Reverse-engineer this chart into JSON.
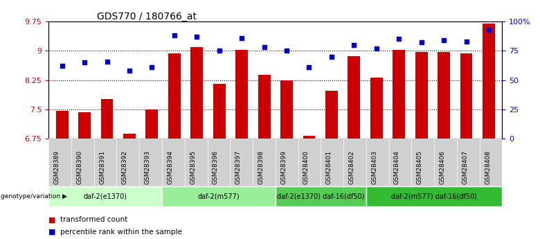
{
  "title": "GDS770 / 180766_at",
  "samples": [
    "GSM28389",
    "GSM28390",
    "GSM28391",
    "GSM28392",
    "GSM28393",
    "GSM28394",
    "GSM28395",
    "GSM28396",
    "GSM28397",
    "GSM28398",
    "GSM28399",
    "GSM28400",
    "GSM28401",
    "GSM28402",
    "GSM28403",
    "GSM28404",
    "GSM28405",
    "GSM28406",
    "GSM28407",
    "GSM28408"
  ],
  "bar_values": [
    7.47,
    7.43,
    7.76,
    6.88,
    7.5,
    8.93,
    9.1,
    8.15,
    9.02,
    8.38,
    8.25,
    6.82,
    7.97,
    8.86,
    8.32,
    9.02,
    8.97,
    8.97,
    8.93,
    9.7
  ],
  "dot_values": [
    62,
    65,
    66,
    58,
    61,
    88,
    87,
    75,
    86,
    78,
    75,
    61,
    70,
    80,
    77,
    85,
    82,
    84,
    83,
    93
  ],
  "ylim_left": [
    6.75,
    9.75
  ],
  "ylim_right": [
    0,
    100
  ],
  "yticks_left": [
    6.75,
    7.5,
    8.25,
    9.0,
    9.75
  ],
  "yticks_right": [
    0,
    25,
    50,
    75,
    100
  ],
  "ytick_labels_left": [
    "6.75",
    "7.5",
    "8.25",
    "9",
    "9.75"
  ],
  "ytick_labels_right": [
    "0",
    "25",
    "50",
    "75",
    "100%"
  ],
  "bar_color": "#cc0000",
  "dot_color": "#0000cc",
  "groups": [
    {
      "label": "daf-2(e1370)",
      "start": 0,
      "end": 5,
      "color": "#ccffcc"
    },
    {
      "label": "daf-2(m577)",
      "start": 5,
      "end": 10,
      "color": "#99ee99"
    },
    {
      "label": "daf-2(e1370) daf-16(df50)",
      "start": 10,
      "end": 14,
      "color": "#55cc55"
    },
    {
      "label": "daf-2(m577) daf-16(df50)",
      "start": 14,
      "end": 20,
      "color": "#33bb33"
    }
  ],
  "group_label": "genotype/variation",
  "legend_bar_label": "transformed count",
  "legend_dot_label": "percentile rank within the sample",
  "bar_color_legend": "#cc0000",
  "dot_color_legend": "#0000cc"
}
